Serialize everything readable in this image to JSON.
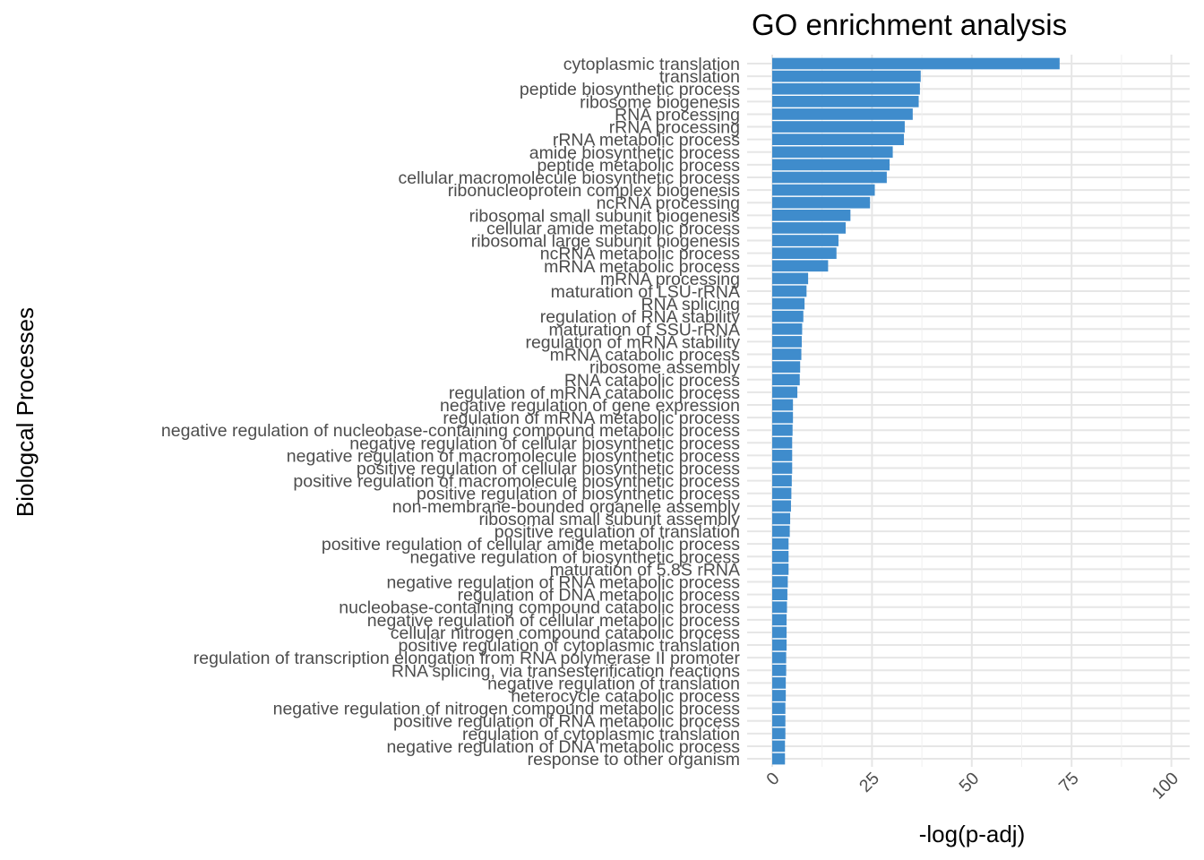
{
  "chart_data": {
    "type": "bar",
    "orientation": "horizontal",
    "title": "GO enrichment analysis",
    "xlabel": "-log(p-adj)",
    "ylabel": "Biologcal Processes",
    "xlim": [
      0,
      100
    ],
    "xticks": [
      0,
      25,
      50,
      75,
      100
    ],
    "xtick_labels": [
      "0",
      "25",
      "50",
      "75",
      "100"
    ],
    "grid": true,
    "bar_color": "#3f8ccc",
    "categories": [
      "cytoplasmic translation",
      "translation",
      "peptide biosynthetic process",
      "ribosome biogenesis",
      "RNA processing",
      "rRNA processing",
      "rRNA metabolic process",
      "amide biosynthetic process",
      "peptide metabolic process",
      "cellular macromolecule biosynthetic process",
      "ribonucleoprotein complex biogenesis",
      "ncRNA processing",
      "ribosomal small subunit biogenesis",
      "cellular amide metabolic process",
      "ribosomal large subunit biogenesis",
      "ncRNA metabolic process",
      "mRNA metabolic process",
      "mRNA processing",
      "maturation of LSU-rRNA",
      "RNA splicing",
      "regulation of RNA stability",
      "maturation of SSU-rRNA",
      "regulation of mRNA stability",
      "mRNA catabolic process",
      "ribosome assembly",
      "RNA catabolic process",
      "regulation of mRNA catabolic process",
      "negative regulation of gene expression",
      "regulation of mRNA metabolic process",
      "negative regulation of nucleobase-containing compound metabolic process",
      "negative regulation of cellular biosynthetic process",
      "negative regulation of macromolecule biosynthetic process",
      "positive regulation of cellular biosynthetic process",
      "positive regulation of macromolecule biosynthetic process",
      "positive regulation of biosynthetic process",
      "non-membrane-bounded organelle assembly",
      "ribosomal small subunit assembly",
      "positive regulation of translation",
      "positive regulation of cellular amide metabolic process",
      "negative regulation of biosynthetic process",
      "maturation of 5.8S rRNA",
      "negative regulation of RNA metabolic process",
      "regulation of DNA metabolic process",
      "nucleobase-containing compound catabolic process",
      "negative regulation of cellular metabolic process",
      "cellular nitrogen compound catabolic process",
      "positive regulation of cytoplasmic translation",
      "regulation of transcription elongation from RNA polymerase II promoter",
      "RNA splicing, via transesterification reactions",
      "negative regulation of translation",
      "heterocycle catabolic process",
      "negative regulation of nitrogen compound metabolic process",
      "positive regulation of RNA metabolic process",
      "regulation of cytoplasmic translation",
      "negative regulation of DNA metabolic process",
      "response to other organism"
    ],
    "values": [
      72.0,
      37.2,
      37.0,
      36.7,
      35.2,
      33.2,
      33.0,
      30.2,
      29.4,
      28.7,
      25.7,
      24.5,
      19.6,
      18.4,
      16.6,
      16.1,
      14.0,
      9.0,
      8.6,
      8.1,
      7.8,
      7.5,
      7.4,
      7.3,
      7.0,
      6.9,
      6.3,
      5.2,
      5.2,
      5.1,
      5.0,
      5.0,
      5.0,
      4.9,
      4.8,
      4.7,
      4.5,
      4.4,
      4.1,
      4.1,
      4.1,
      3.9,
      3.8,
      3.7,
      3.6,
      3.6,
      3.6,
      3.5,
      3.5,
      3.4,
      3.4,
      3.3,
      3.3,
      3.3,
      3.2,
      3.2
    ]
  }
}
